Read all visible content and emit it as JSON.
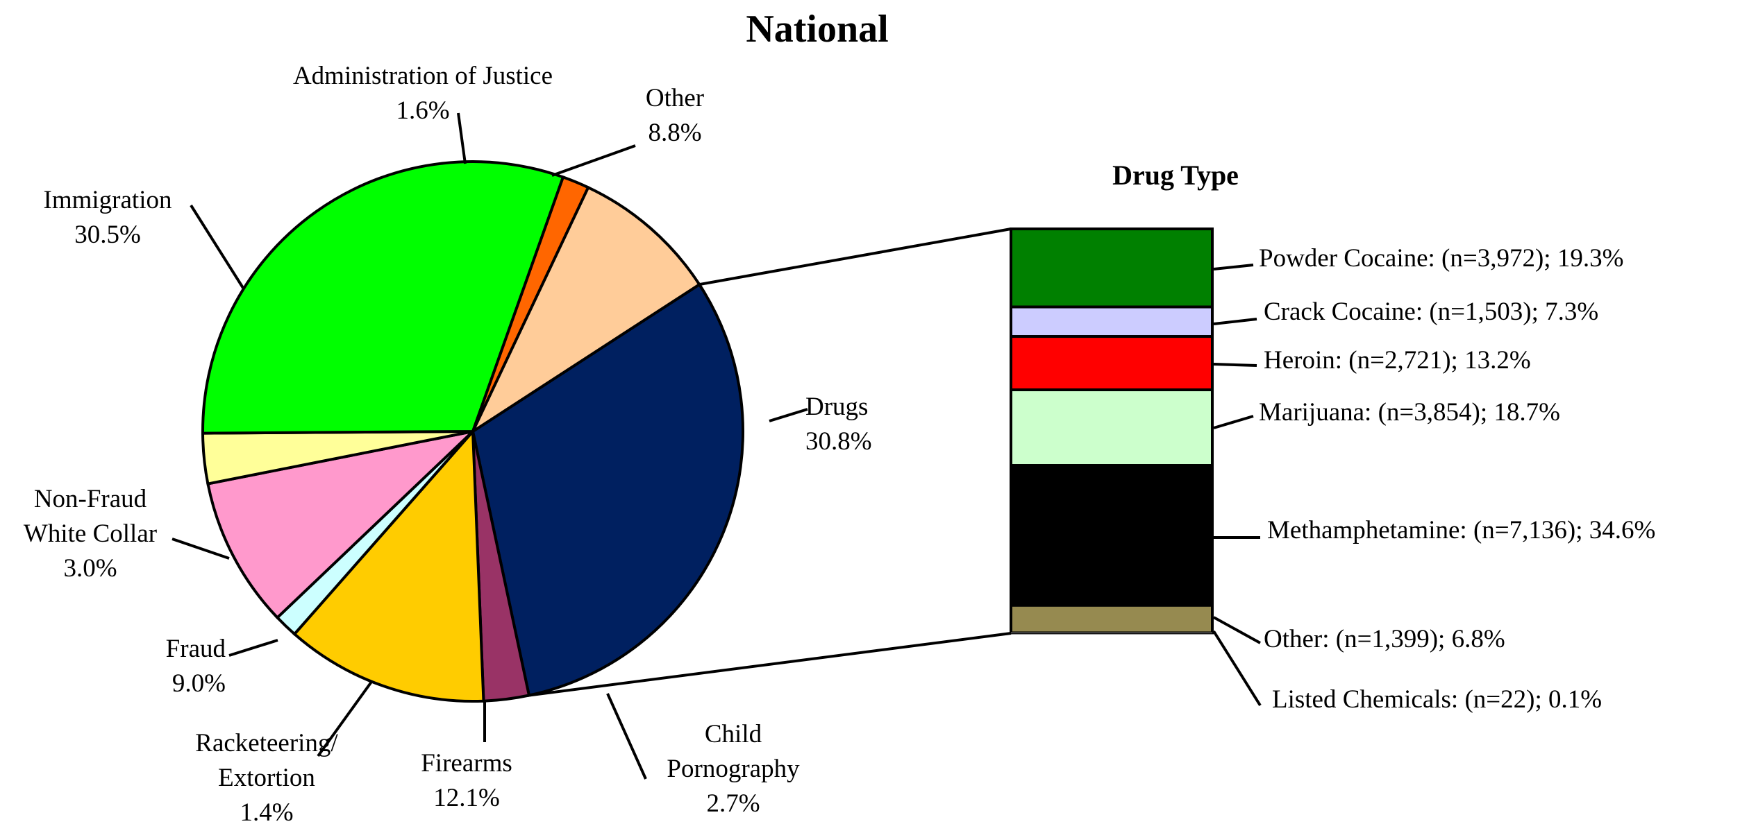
{
  "chart_data": [
    {
      "type": "pie",
      "title": "National",
      "slices": [
        {
          "label": [
            "Drugs"
          ],
          "value": 30.8,
          "display": "30.8%",
          "color": "#002060"
        },
        {
          "label": [
            "Child",
            "Pornography"
          ],
          "value": 2.7,
          "display": "2.7%",
          "color": "#993366"
        },
        {
          "label": [
            "Firearms"
          ],
          "value": 12.1,
          "display": "12.1%",
          "color": "#FFCC00"
        },
        {
          "label": [
            "Racketeering/",
            "Extortion"
          ],
          "value": 1.4,
          "display": "1.4%",
          "color": "#CCFFFF"
        },
        {
          "label": [
            "Fraud"
          ],
          "value": 9.0,
          "display": "9.0%",
          "color": "#FF99CC"
        },
        {
          "label": [
            "Non-Fraud",
            "White Collar"
          ],
          "value": 3.0,
          "display": "3.0%",
          "color": "#FFFF99"
        },
        {
          "label": [
            "Immigration"
          ],
          "value": 30.5,
          "display": "30.5%",
          "color": "#00FF00"
        },
        {
          "label": [
            "Administration of Justice"
          ],
          "value": 1.6,
          "display": "1.6%",
          "color": "#FF6600"
        },
        {
          "label": [
            "Other"
          ],
          "value": 8.8,
          "display": "8.8%",
          "color": "#FFCC99"
        }
      ]
    },
    {
      "type": "bar",
      "stacked": true,
      "title": "Drug Type",
      "segments": [
        {
          "name": "Powder Cocaine:",
          "n": "(n=3,972);",
          "pct": "19.3%",
          "value": 19.3,
          "color": "#008000"
        },
        {
          "name": "Crack Cocaine:",
          "n": "(n=1,503);",
          "pct": "7.3%",
          "value": 7.3,
          "color": "#CCCCFF"
        },
        {
          "name": "Heroin:",
          "n": "(n=2,721);",
          "pct": "13.2%",
          "value": 13.2,
          "color": "#FF0000"
        },
        {
          "name": "Marijuana:",
          "n": "(n=3,854);",
          "pct": "18.7%",
          "value": 18.7,
          "color": "#CCFFCC"
        },
        {
          "name": "Methamphetamine:",
          "n": "(n=7,136);",
          "pct": "34.6%",
          "value": 34.6,
          "color": "#000000"
        },
        {
          "name": "Other:",
          "n": "(n=1,399);",
          "pct": "6.8%",
          "value": 6.8,
          "color": "#968A50"
        },
        {
          "name": "Listed Chemicals:",
          "n": "(n=22);",
          "pct": "0.1%",
          "value": 0.1,
          "color": "#FFFFFF"
        }
      ]
    }
  ]
}
